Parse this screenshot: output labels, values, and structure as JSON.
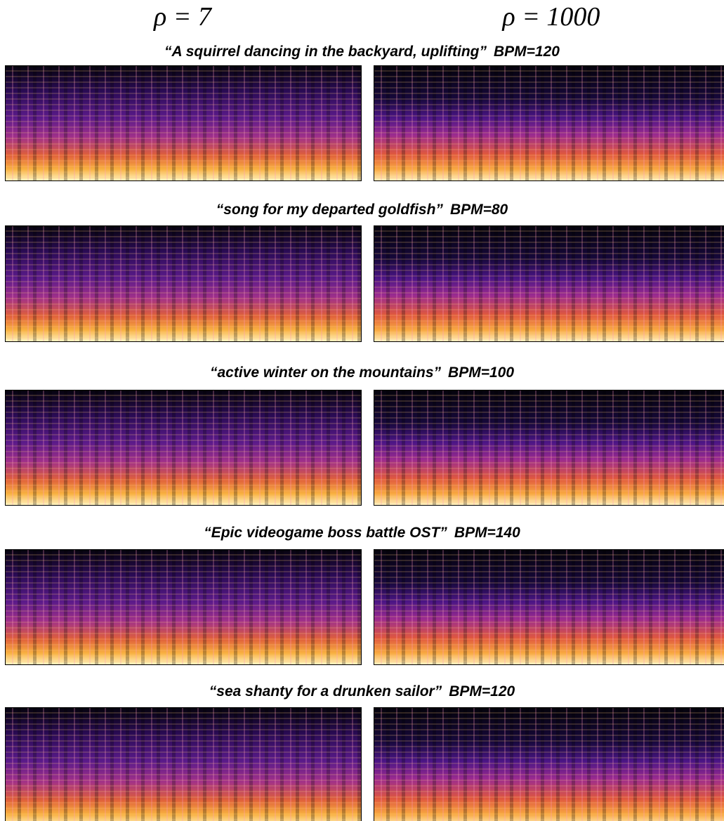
{
  "columns": [
    "ρ = 7",
    "ρ = 1000"
  ],
  "rows": [
    {
      "prompt": "“A squirrel dancing in the backyard, uplifting”",
      "bpm": "BPM=120"
    },
    {
      "prompt": "“song for my departed goldfish”",
      "bpm": "BPM=80"
    },
    {
      "prompt": "“active winter on the mountains”",
      "bpm": "BPM=100"
    },
    {
      "prompt": "“Epic videogame boss battle OST”",
      "bpm": "BPM=140"
    },
    {
      "prompt": "“sea shanty for a drunken sailor”",
      "bpm": "BPM=120"
    }
  ]
}
